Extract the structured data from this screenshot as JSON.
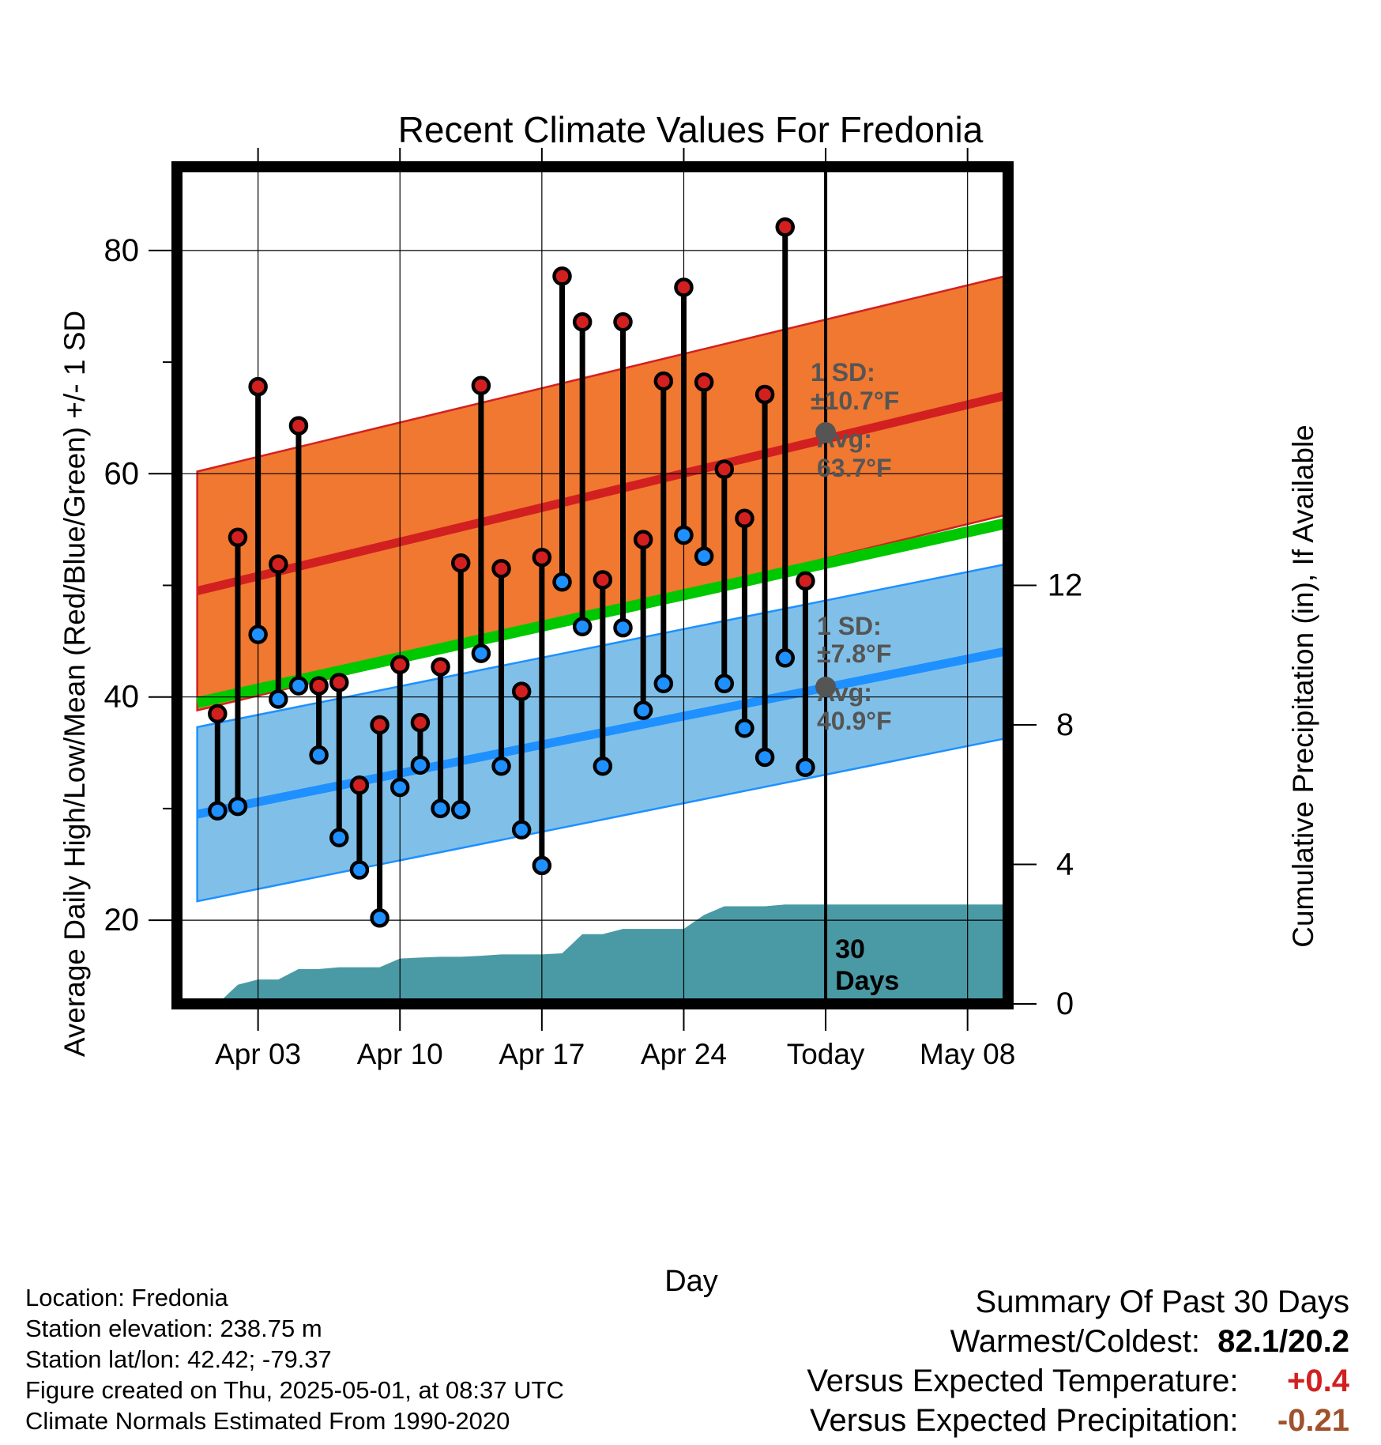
{
  "chart_data": {
    "type": "line",
    "title": "Recent Climate Values For Fredonia",
    "xlabel": "Day",
    "ylabel_left": "Average Daily High/Low/Mean (Red/Blue/Green) +/- 1 SD",
    "ylabel_right": "Cumulative Precipitation (in), If Available",
    "x_ticks": [
      {
        "day": "2025-04-03",
        "label": "Apr 03"
      },
      {
        "day": "2025-04-10",
        "label": "Apr 10"
      },
      {
        "day": "2025-04-17",
        "label": "Apr 17"
      },
      {
        "day": "2025-04-24",
        "label": "Apr 24"
      },
      {
        "day": "2025-05-01",
        "label": "Today"
      },
      {
        "day": "2025-05-08",
        "label": "May 08"
      }
    ],
    "xlim": [
      "2025-03-30",
      "2025-05-10"
    ],
    "ylim_left": [
      12.5,
      87.5
    ],
    "y_ticks_left": [
      20,
      40,
      60,
      80
    ],
    "ylim_right": [
      0,
      24
    ],
    "y_ticks_right": [
      0,
      4,
      8,
      12
    ],
    "grid": true,
    "today": "2025-05-01",
    "today_label_line1": "30",
    "today_label_line2": "Days",
    "normals": {
      "dates": [
        "2025-03-31",
        "2025-05-11"
      ],
      "high_avg": [
        49.5,
        67.5
      ],
      "high_sd": 10.7,
      "low_avg": [
        29.5,
        44.5
      ],
      "low_sd": 7.8,
      "mean_avg": [
        39.5,
        56.0
      ]
    },
    "high_annotation": {
      "sd_title": "1 SD:",
      "sd_value": "±10.7°F",
      "avg_title": "Avg:",
      "avg_value": "63.7°F",
      "avg": 63.7
    },
    "low_annotation": {
      "sd_title": "1 SD:",
      "sd_value": "±7.8°F",
      "avg_title": "Avg:",
      "avg_value": "40.9°F",
      "avg": 40.9
    },
    "observations": [
      {
        "date": "2025-04-01",
        "high": 38.5,
        "low": 29.8
      },
      {
        "date": "2025-04-02",
        "high": 54.3,
        "low": 30.2
      },
      {
        "date": "2025-04-03",
        "high": 67.8,
        "low": 45.6
      },
      {
        "date": "2025-04-04",
        "high": 51.9,
        "low": 39.8
      },
      {
        "date": "2025-04-05",
        "high": 64.3,
        "low": 41.0
      },
      {
        "date": "2025-04-06",
        "high": 41.0,
        "low": 34.8
      },
      {
        "date": "2025-04-07",
        "high": 41.3,
        "low": 27.4
      },
      {
        "date": "2025-04-08",
        "high": 32.1,
        "low": 24.5
      },
      {
        "date": "2025-04-09",
        "high": 37.5,
        "low": 20.2
      },
      {
        "date": "2025-04-10",
        "high": 42.9,
        "low": 31.9
      },
      {
        "date": "2025-04-11",
        "high": 37.7,
        "low": 33.9
      },
      {
        "date": "2025-04-12",
        "high": 42.7,
        "low": 30.0
      },
      {
        "date": "2025-04-13",
        "high": 52.0,
        "low": 29.9
      },
      {
        "date": "2025-04-14",
        "high": 67.9,
        "low": 43.9
      },
      {
        "date": "2025-04-15",
        "high": 51.5,
        "low": 33.8
      },
      {
        "date": "2025-04-16",
        "high": 40.5,
        "low": 28.1
      },
      {
        "date": "2025-04-17",
        "high": 52.5,
        "low": 24.9
      },
      {
        "date": "2025-04-18",
        "high": 77.7,
        "low": 50.3
      },
      {
        "date": "2025-04-19",
        "high": 73.6,
        "low": 46.3
      },
      {
        "date": "2025-04-20",
        "high": 50.5,
        "low": 33.8
      },
      {
        "date": "2025-04-21",
        "high": 73.6,
        "low": 46.2
      },
      {
        "date": "2025-04-22",
        "high": 54.1,
        "low": 38.8
      },
      {
        "date": "2025-04-23",
        "high": 68.3,
        "low": 41.2
      },
      {
        "date": "2025-04-24",
        "high": 76.7,
        "low": 54.5
      },
      {
        "date": "2025-04-25",
        "high": 68.2,
        "low": 52.6
      },
      {
        "date": "2025-04-26",
        "high": 60.4,
        "low": 41.2
      },
      {
        "date": "2025-04-27",
        "high": 56.0,
        "low": 37.2
      },
      {
        "date": "2025-04-28",
        "high": 67.1,
        "low": 34.6
      },
      {
        "date": "2025-04-29",
        "high": 82.1,
        "low": 43.5
      },
      {
        "date": "2025-04-30",
        "high": 50.4,
        "low": 33.7
      }
    ],
    "precipitation_cumulative": [
      {
        "date": "2025-03-31",
        "value": 0.0
      },
      {
        "date": "2025-04-01",
        "value": 0.0
      },
      {
        "date": "2025-04-02",
        "value": 0.55
      },
      {
        "date": "2025-04-03",
        "value": 0.7
      },
      {
        "date": "2025-04-04",
        "value": 0.7
      },
      {
        "date": "2025-04-05",
        "value": 1.0
      },
      {
        "date": "2025-04-06",
        "value": 1.0
      },
      {
        "date": "2025-04-07",
        "value": 1.05
      },
      {
        "date": "2025-04-08",
        "value": 1.05
      },
      {
        "date": "2025-04-09",
        "value": 1.05
      },
      {
        "date": "2025-04-10",
        "value": 1.3
      },
      {
        "date": "2025-04-11",
        "value": 1.33
      },
      {
        "date": "2025-04-12",
        "value": 1.35
      },
      {
        "date": "2025-04-13",
        "value": 1.35
      },
      {
        "date": "2025-04-14",
        "value": 1.38
      },
      {
        "date": "2025-04-15",
        "value": 1.42
      },
      {
        "date": "2025-04-16",
        "value": 1.42
      },
      {
        "date": "2025-04-17",
        "value": 1.42
      },
      {
        "date": "2025-04-18",
        "value": 1.45
      },
      {
        "date": "2025-04-19",
        "value": 2.0
      },
      {
        "date": "2025-04-20",
        "value": 2.0
      },
      {
        "date": "2025-04-21",
        "value": 2.15
      },
      {
        "date": "2025-04-22",
        "value": 2.15
      },
      {
        "date": "2025-04-23",
        "value": 2.15
      },
      {
        "date": "2025-04-24",
        "value": 2.15
      },
      {
        "date": "2025-04-25",
        "value": 2.55
      },
      {
        "date": "2025-04-26",
        "value": 2.8
      },
      {
        "date": "2025-04-27",
        "value": 2.8
      },
      {
        "date": "2025-04-28",
        "value": 2.8
      },
      {
        "date": "2025-04-29",
        "value": 2.85
      },
      {
        "date": "2025-04-30",
        "value": 2.85
      },
      {
        "date": "2025-05-11",
        "value": 2.85
      }
    ]
  },
  "colors": {
    "high_band": "#f07830",
    "high_line": "#d22020",
    "low_band": "#80c0e8",
    "low_line": "#1e90ff",
    "mean_line": "#00c800",
    "precip": "#4a9aa5",
    "high_dot": "#d22020",
    "low_dot": "#1e90ff",
    "annotation": "#555555",
    "warm_anomaly": "#d22020",
    "precip_anomaly": "#a0522d"
  },
  "info": {
    "location": "Location: Fredonia",
    "elevation": "Station elevation: 238.75 m",
    "latlon": "Station lat/lon: 42.42; -79.37",
    "created": "Figure created on Thu, 2025-05-01, at 08:37 UTC",
    "normals": "Climate Normals Estimated From 1990-2020"
  },
  "summary": {
    "title": "Summary Of Past 30 Days",
    "warmest_label": "Warmest/Coldest:",
    "warmest_value": "82.1/20.2",
    "temp_label": "Versus Expected Temperature:",
    "temp_value": "+0.4",
    "precip_label": "Versus Expected Precipitation:",
    "precip_value": "-0.21"
  }
}
